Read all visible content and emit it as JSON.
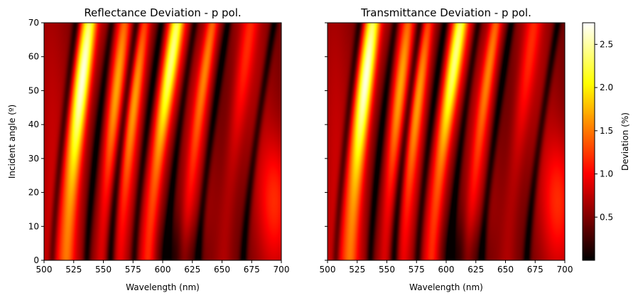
{
  "chart_data": [
    {
      "type": "heatmap",
      "title": "Reflectance Deviation - p pol.",
      "xlabel": "Wavelength (nm)",
      "ylabel": "Incident angle (º)",
      "xlim": [
        500,
        700
      ],
      "ylim": [
        0,
        70
      ],
      "xticks": [
        "500",
        "525",
        "550",
        "575",
        "600",
        "625",
        "650",
        "675",
        "700"
      ],
      "yticks": [
        "0",
        "10",
        "20",
        "30",
        "40",
        "50",
        "60",
        "70"
      ],
      "colormap": "hot",
      "fringes": [
        {
          "wavelength_at_0deg": 519,
          "shift_at_70deg": 19,
          "peak": 2.7,
          "peak_angle_deg": 55,
          "width_nm": 7.0
        },
        {
          "wavelength_at_0deg": 548,
          "shift_at_70deg": 20,
          "peak": 1.55,
          "peak_angle_deg": 50,
          "width_nm": 5.5
        },
        {
          "wavelength_at_0deg": 564,
          "shift_at_70deg": 21,
          "peak": 1.55,
          "peak_angle_deg": 50,
          "width_nm": 5.5
        },
        {
          "wavelength_at_0deg": 588,
          "shift_at_70deg": 24,
          "peak": 2.35,
          "peak_angle_deg": 58,
          "width_nm": 6.5
        },
        {
          "wavelength_at_0deg": 618,
          "shift_at_70deg": 24,
          "peak": 1.5,
          "peak_angle_deg": 60,
          "width_nm": 5.5
        },
        {
          "wavelength_at_0deg": 652,
          "shift_at_70deg": 22,
          "peak": 1.05,
          "peak_angle_deg": 60,
          "width_nm": 7.0
        }
      ],
      "value_range": [
        0.02,
        2.75
      ]
    },
    {
      "type": "heatmap",
      "title": "Transmittance Deviation - p pol.",
      "xlabel": "Wavelength (nm)",
      "ylabel": "",
      "xlim": [
        500,
        700
      ],
      "ylim": [
        0,
        70
      ],
      "xticks": [
        "500",
        "525",
        "550",
        "575",
        "600",
        "625",
        "650",
        "675",
        "700"
      ],
      "yticks": [
        "0",
        "10",
        "20",
        "30",
        "40",
        "50",
        "60",
        "70"
      ],
      "colormap": "hot",
      "fringes": [
        {
          "wavelength_at_0deg": 519,
          "shift_at_70deg": 19,
          "peak": 2.7,
          "peak_angle_deg": 55,
          "width_nm": 7.0
        },
        {
          "wavelength_at_0deg": 548,
          "shift_at_70deg": 20,
          "peak": 1.55,
          "peak_angle_deg": 50,
          "width_nm": 5.5
        },
        {
          "wavelength_at_0deg": 564,
          "shift_at_70deg": 21,
          "peak": 1.55,
          "peak_angle_deg": 50,
          "width_nm": 5.5
        },
        {
          "wavelength_at_0deg": 588,
          "shift_at_70deg": 24,
          "peak": 2.35,
          "peak_angle_deg": 58,
          "width_nm": 6.5
        },
        {
          "wavelength_at_0deg": 618,
          "shift_at_70deg": 24,
          "peak": 1.5,
          "peak_angle_deg": 60,
          "width_nm": 5.5
        },
        {
          "wavelength_at_0deg": 652,
          "shift_at_70deg": 22,
          "peak": 1.05,
          "peak_angle_deg": 60,
          "width_nm": 7.0
        }
      ],
      "value_range": [
        0.02,
        2.75
      ]
    }
  ],
  "colorbar": {
    "label": "Deviation (%)",
    "range": [
      0.0,
      2.75
    ],
    "ticks": [
      0.5,
      1.0,
      1.5,
      2.0,
      2.5
    ],
    "tick_labels": [
      "0.5",
      "1.0",
      "1.5",
      "2.0",
      "2.5"
    ]
  }
}
